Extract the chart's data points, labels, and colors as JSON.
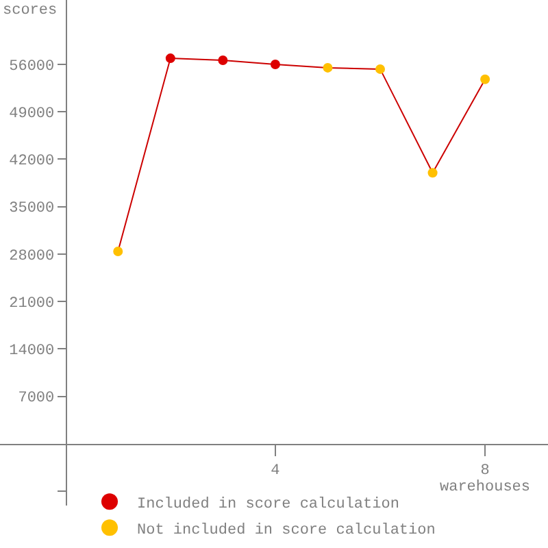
{
  "chart_data": {
    "type": "scatter",
    "xlabel": "warehouses",
    "ylabel": "scores",
    "x": [
      1,
      2,
      3,
      4,
      5,
      6,
      7,
      8
    ],
    "series": [
      {
        "type": "line",
        "color": "#cc0000",
        "values": [
          28400,
          56900,
          56600,
          56000,
          55500,
          55300,
          40000,
          53800
        ],
        "marker": "none"
      },
      {
        "name": "Included in score calculation",
        "color": "#dd0000",
        "x": [
          2,
          3,
          4
        ],
        "values": [
          56900,
          56600,
          56000
        ],
        "marker": "circle"
      },
      {
        "name": "Not included in score calculation",
        "color": "#ffc000",
        "x": [
          1,
          5,
          6,
          7,
          8
        ],
        "values": [
          28400,
          55500,
          55300,
          40000,
          53800
        ],
        "marker": "circle"
      }
    ],
    "xlim": [
      -1.25,
      9.2
    ],
    "xticks": [
      4,
      8
    ],
    "ylim": [
      -9100,
      65500
    ],
    "yticks": [
      {
        "value": -7000,
        "label": null
      },
      7000,
      14000,
      21000,
      28000,
      35000,
      42000,
      49000,
      56000
    ],
    "legend": "bottom left"
  }
}
